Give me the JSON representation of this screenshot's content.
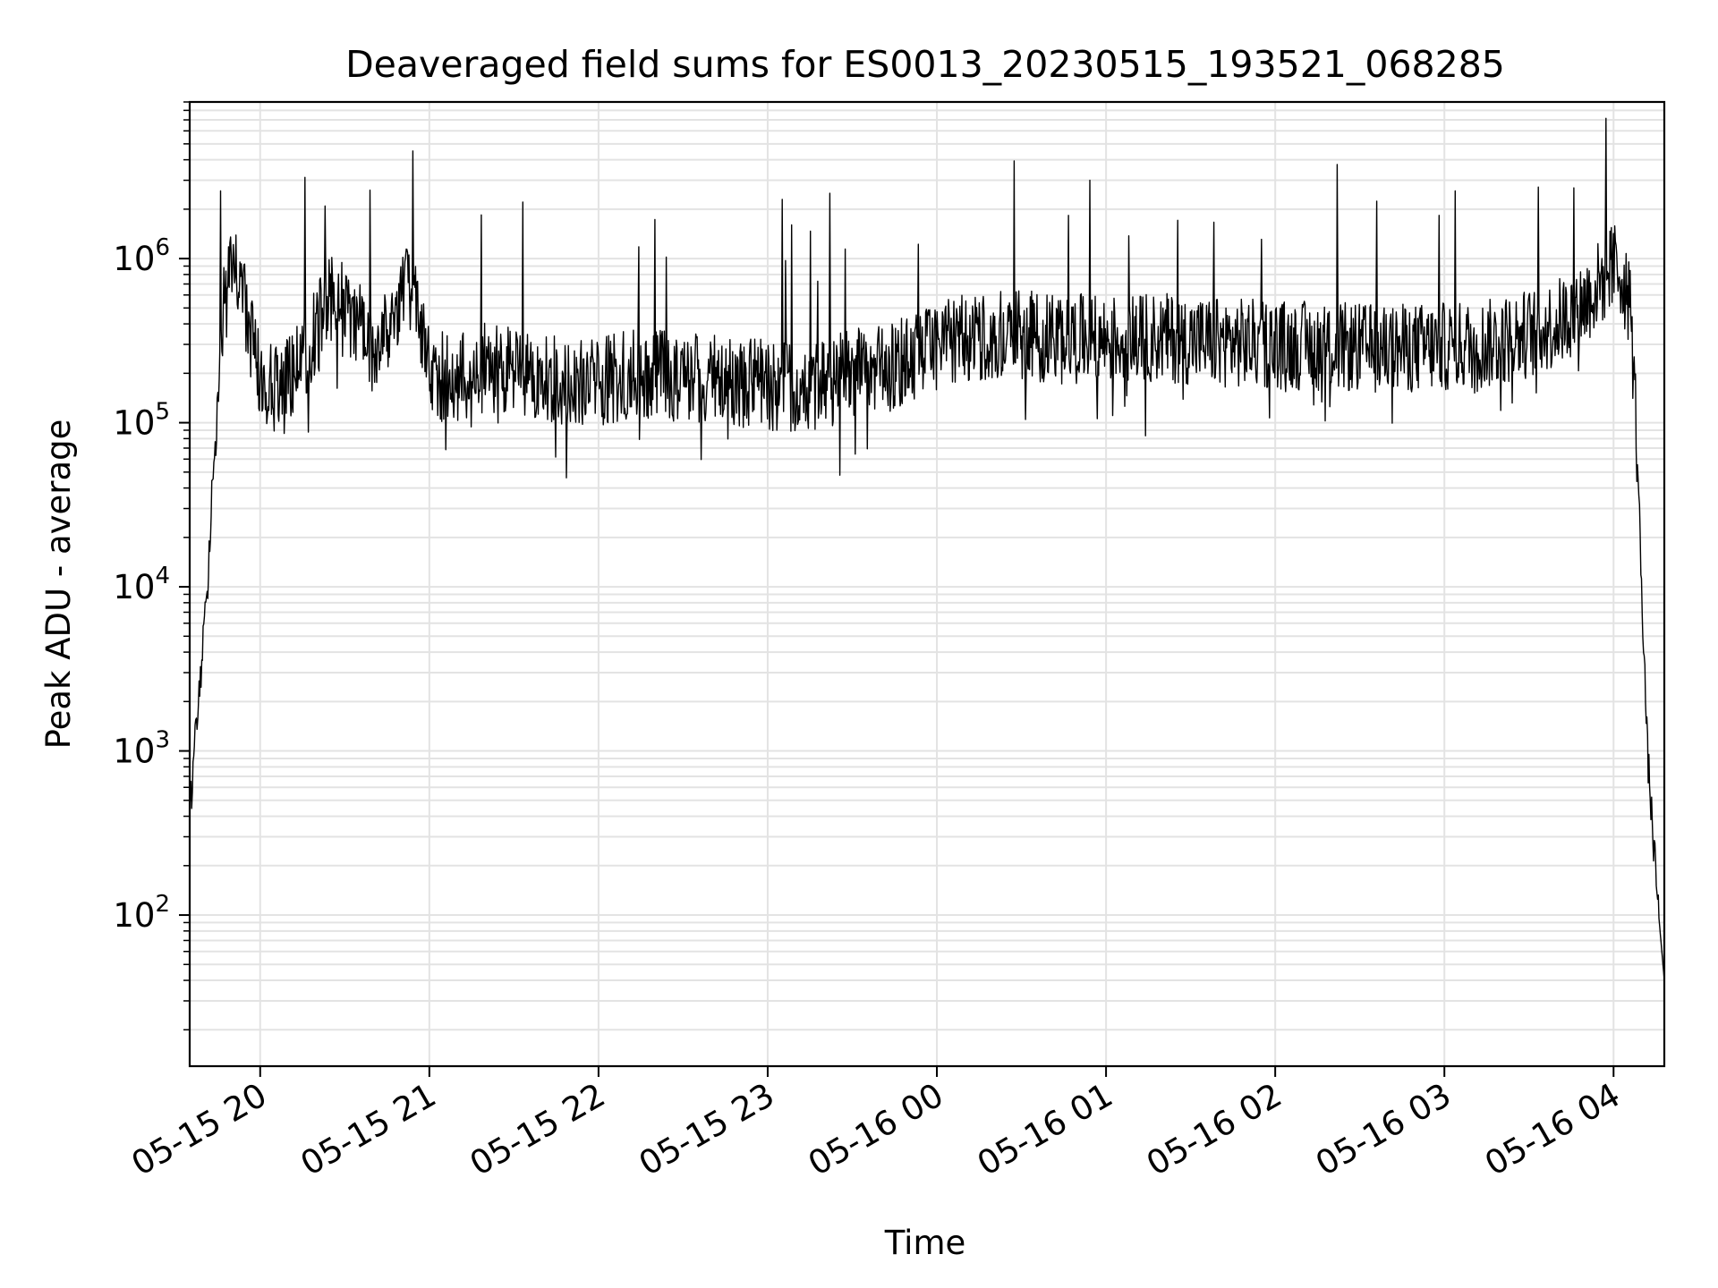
{
  "chart_data": {
    "type": "line",
    "title": "Deaveraged field sums for ES0013_20230515_193521_068285",
    "xlabel": "Time",
    "ylabel": "Peak ADU - average",
    "x_axis": {
      "kind": "datetime",
      "range": [
        "2023-05-15 19:35",
        "2023-05-16 04:18"
      ],
      "ticks": [
        {
          "value": "2023-05-15 20:00",
          "label": "05-15 20"
        },
        {
          "value": "2023-05-15 21:00",
          "label": "05-15 21"
        },
        {
          "value": "2023-05-15 22:00",
          "label": "05-15 22"
        },
        {
          "value": "2023-05-15 23:00",
          "label": "05-15 23"
        },
        {
          "value": "2023-05-16 00:00",
          "label": "05-16 00"
        },
        {
          "value": "2023-05-16 01:00",
          "label": "05-16 01"
        },
        {
          "value": "2023-05-16 02:00",
          "label": "05-16 02"
        },
        {
          "value": "2023-05-16 03:00",
          "label": "05-16 03"
        },
        {
          "value": "2023-05-16 04:00",
          "label": "05-16 04"
        }
      ]
    },
    "y_axis": {
      "scale": "log",
      "range": [
        12,
        9000000
      ],
      "ticks": [
        {
          "value": 100,
          "base": "10",
          "exp": "2"
        },
        {
          "value": 1000,
          "base": "10",
          "exp": "3"
        },
        {
          "value": 10000,
          "base": "10",
          "exp": "4"
        },
        {
          "value": 100000,
          "base": "10",
          "exp": "5"
        },
        {
          "value": 1000000,
          "base": "10",
          "exp": "6"
        }
      ]
    },
    "grid": true,
    "line_color": "#000000",
    "series": [
      {
        "x": [
          "2023-05-15 19:35",
          "2023-05-15 19:37",
          "2023-05-15 19:39",
          "2023-05-15 19:41",
          "2023-05-15 19:43",
          "2023-05-15 19:45",
          "2023-05-15 19:47",
          "2023-05-15 19:49",
          "2023-05-15 19:51",
          "2023-05-15 19:53",
          "2023-05-15 19:55",
          "2023-05-15 19:58",
          "2023-05-15 20:00",
          "2023-05-15 20:05",
          "2023-05-15 20:10",
          "2023-05-15 20:15",
          "2023-05-15 20:20",
          "2023-05-15 20:25",
          "2023-05-15 20:30",
          "2023-05-15 20:35",
          "2023-05-15 20:40",
          "2023-05-15 20:45",
          "2023-05-15 20:50",
          "2023-05-15 20:55",
          "2023-05-15 21:00",
          "2023-05-15 21:10",
          "2023-05-15 21:20",
          "2023-05-15 21:30",
          "2023-05-15 21:40",
          "2023-05-15 21:50",
          "2023-05-15 22:00",
          "2023-05-15 22:15",
          "2023-05-15 22:30",
          "2023-05-15 22:45",
          "2023-05-15 23:00",
          "2023-05-15 23:15",
          "2023-05-15 23:30",
          "2023-05-15 23:45",
          "2023-05-16 00:00",
          "2023-05-16 00:20",
          "2023-05-16 00:40",
          "2023-05-16 01:00",
          "2023-05-16 01:20",
          "2023-05-16 01:40",
          "2023-05-16 02:00",
          "2023-05-16 02:20",
          "2023-05-16 02:40",
          "2023-05-16 03:00",
          "2023-05-16 03:15",
          "2023-05-16 03:30",
          "2023-05-16 03:40",
          "2023-05-16 03:50",
          "2023-05-16 04:00",
          "2023-05-16 04:03",
          "2023-05-16 04:06",
          "2023-05-16 04:08",
          "2023-05-16 04:10",
          "2023-05-16 04:12",
          "2023-05-16 04:14",
          "2023-05-16 04:16",
          "2023-05-16 04:18"
        ],
        "y": [
          400,
          1200,
          3000,
          8000,
          40000,
          200000,
          500000,
          750000,
          800000,
          700000,
          450000,
          250000,
          200000,
          150000,
          180000,
          250000,
          350000,
          600000,
          500000,
          400000,
          250000,
          350000,
          600000,
          700000,
          200000,
          180000,
          220000,
          200000,
          190000,
          170000,
          180000,
          200000,
          190000,
          180000,
          170000,
          160000,
          200000,
          220000,
          300000,
          350000,
          330000,
          320000,
          330000,
          310000,
          300000,
          290000,
          280000,
          290000,
          300000,
          350000,
          400000,
          550000,
          900000,
          800000,
          500000,
          100000,
          10000,
          1000,
          300,
          100,
          40
        ]
      }
    ]
  }
}
